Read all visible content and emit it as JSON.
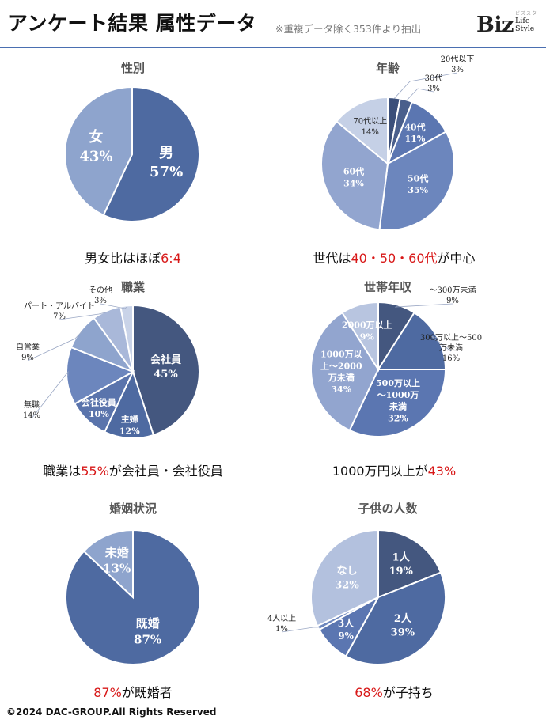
{
  "header": {
    "title": "アンケート結果 属性データ",
    "note": "※重複データ除く353件より抽出",
    "logo": {
      "main": "Biz",
      "sub_line1": "Life",
      "sub_line2": "Style",
      "ruby": "ビズスタ"
    }
  },
  "colors": {
    "navy": "#44577f",
    "blue": "#4e6aa1",
    "mid": "#6c86bd",
    "light": "#8ea4cd",
    "pale": "#a7b7d8",
    "paler": "#c5d0e6",
    "highlight": "#d81818",
    "rule": "#4a6fb1"
  },
  "chart_data": [
    {
      "type": "pie",
      "title": "性別",
      "labels": [
        "男",
        "女"
      ],
      "values": [
        57,
        43
      ],
      "value_labels": [
        "57%",
        "43%"
      ],
      "colors": [
        "#4e6aa1",
        "#8ea4cd"
      ],
      "caption": {
        "before": "男女比はほぼ",
        "highlight": "6:4",
        "after": ""
      }
    },
    {
      "type": "pie",
      "title": "年齢",
      "labels": [
        "20代以下",
        "30代",
        "40代",
        "50代",
        "60代",
        "70代以上"
      ],
      "values": [
        3,
        3,
        11,
        35,
        34,
        14
      ],
      "value_labels": [
        "3%",
        "3%",
        "11%",
        "35%",
        "34%",
        "14%"
      ],
      "colors": [
        "#3b4f7a",
        "#4a5f8c",
        "#5b76b1",
        "#6c86bd",
        "#92a5cf",
        "#c5d0e6"
      ],
      "caption": {
        "before": "世代は",
        "highlight": "40・50・60代",
        "after": "が中心"
      }
    },
    {
      "type": "pie",
      "title": "職業",
      "labels": [
        "会社員",
        "主婦",
        "会社役員",
        "無職",
        "自営業",
        "パート・アルバイト",
        "その他"
      ],
      "values": [
        45,
        12,
        10,
        14,
        9,
        7,
        3
      ],
      "value_labels": [
        "45%",
        "12%",
        "10%",
        "14%",
        "9%",
        "7%",
        "3%"
      ],
      "colors": [
        "#44577f",
        "#4e6aa1",
        "#5a74ac",
        "#6c86bd",
        "#8ea4cd",
        "#a9b8d9",
        "#c9d3e8"
      ],
      "caption": {
        "before": "職業は",
        "highlight": "55%",
        "after": "が会社員・会社役員"
      }
    },
    {
      "type": "pie",
      "title": "世帯年収",
      "labels": [
        "～300万未満",
        "300万以上～500万未満",
        "500万以上～1000万未満",
        "1000万以上～2000万未満",
        "2000万以上"
      ],
      "values": [
        9,
        16,
        32,
        34,
        9
      ],
      "value_labels": [
        "9%",
        "16%",
        "32%",
        "34%",
        "9%"
      ],
      "colors": [
        "#44577f",
        "#4e6aa1",
        "#5b76b1",
        "#92a5cf",
        "#b8c5e0"
      ],
      "caption": {
        "before": "1000万円以上が",
        "highlight": "43%",
        "after": ""
      }
    },
    {
      "type": "pie",
      "title": "婚姻状況",
      "labels": [
        "既婚",
        "未婚"
      ],
      "values": [
        87,
        13
      ],
      "value_labels": [
        "87%",
        "13%"
      ],
      "colors": [
        "#4e6aa1",
        "#8ea4cd"
      ],
      "caption": {
        "before": "",
        "highlight": "87%",
        "after": "が既婚者"
      }
    },
    {
      "type": "pie",
      "title": "子供の人数",
      "labels": [
        "1人",
        "2人",
        "3人",
        "4人以上",
        "なし"
      ],
      "values": [
        19,
        39,
        9,
        1,
        32
      ],
      "value_labels": [
        "19%",
        "39%",
        "9%",
        "1%",
        "32%"
      ],
      "colors": [
        "#44577f",
        "#4e6aa1",
        "#5b76b1",
        "#6c86bd",
        "#b3c1de"
      ],
      "caption": {
        "before": "",
        "highlight": "68%",
        "after": "が子持ち"
      }
    }
  ],
  "footer": {
    "copyright": "©2024 DAC-GROUP.All Rights Reserved"
  }
}
